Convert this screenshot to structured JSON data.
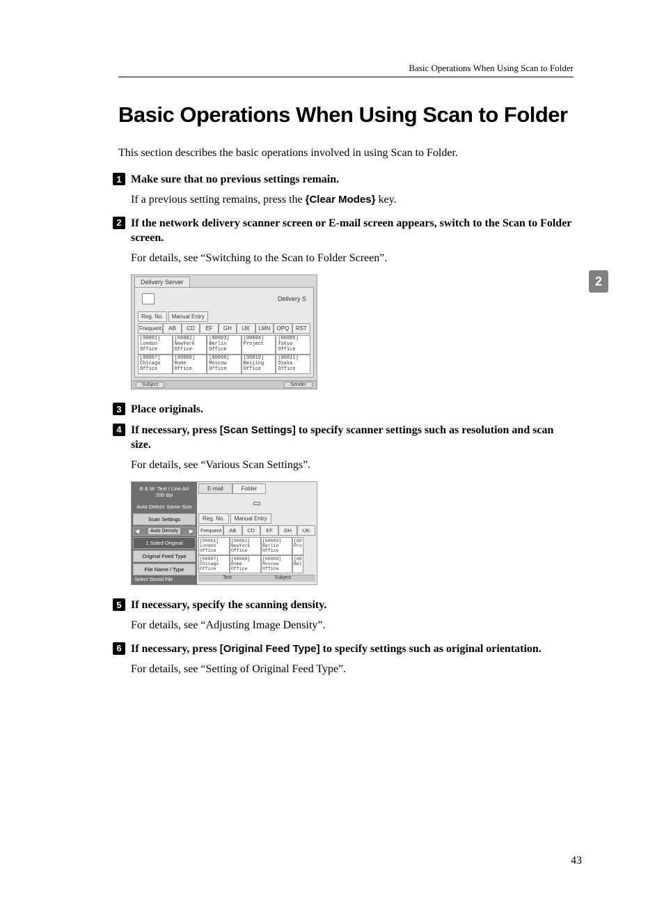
{
  "header": "Basic Operations When Using Scan to Folder",
  "title": "Basic Operations When Using Scan to Folder",
  "intro": "This section describes the basic operations involved in using Scan to Folder.",
  "side_tab": "2",
  "page_number": "43",
  "steps": {
    "s1": {
      "title": "Make sure that no previous settings remain.",
      "body_pre": "If a previous setting remains, press the ",
      "key": "{Clear Modes}",
      "body_post": " key."
    },
    "s2": {
      "title": "If the network delivery scanner screen or E-mail screen appears, switch to the Scan to Folder screen.",
      "body": "For details, see “Switching to the Scan to Folder Screen”."
    },
    "s3": {
      "title": "Place originals."
    },
    "s4": {
      "title_pre": "If necessary, press ",
      "key": "[Scan Settings]",
      "title_post": " to specify scanner settings such as resolution and scan size.",
      "body": "For details, see “Various Scan Settings”."
    },
    "s5": {
      "title": "If necessary, specify the scanning density.",
      "body": "For details, see “Adjusting Image Density”."
    },
    "s6": {
      "title_pre": "If necessary, press ",
      "key": "[Original Feed Type]",
      "title_post": " to specify settings such as original orientation.",
      "body": "For details, see “Setting of Original Feed Type”."
    }
  },
  "ss1": {
    "tab": "Delivery Server",
    "right_label": "Delivery S",
    "reg_no": "Reg. No.",
    "manual_entry": "Manual Entry",
    "frequent": "Frequent",
    "alpha": [
      "AB",
      "CD",
      "EF",
      "GH",
      "IJK",
      "LMN",
      "OPQ",
      "RST"
    ],
    "entries": [
      {
        "id": "[00001]",
        "name": "London Office"
      },
      {
        "id": "[00002]",
        "name": "NewYork Office"
      },
      {
        "id": "[00003]",
        "name": "Berlin Office"
      },
      {
        "id": "[00004]",
        "name": "Project"
      },
      {
        "id": "[00005]",
        "name": "Tokyo Office"
      },
      {
        "id": "[00007]",
        "name": "Chicago Office"
      },
      {
        "id": "[00008]",
        "name": "Rome Office"
      },
      {
        "id": "[00009]",
        "name": "Moscow Office"
      },
      {
        "id": "[00010]",
        "name": "Beijing Office"
      },
      {
        "id": "[00011]",
        "name": "Osaka Office"
      }
    ],
    "footer_left": "Subject",
    "footer_right": "Sender"
  },
  "ss2": {
    "info1": "B & W: Text / Line Art",
    "info2": "200 dpi",
    "info3": "Auto Detect: Same Size",
    "scan_settings": "Scan Settings",
    "auto_density": "Auto Density",
    "one_sided": "1 Sided Original",
    "feed_type": "Original Feed Type",
    "file_name": "File Name / Type",
    "left_foot": "Select Stored File",
    "tab_email": "E-mail",
    "tab_folder": "Folder",
    "reg_no": "Reg. No.",
    "manual_entry": "Manual Entry",
    "frequent": "Frequent",
    "alpha": [
      "AB",
      "CD",
      "EF",
      "GH",
      "IJK"
    ],
    "entries_r1": [
      {
        "id": "[00001]",
        "name": "London Office"
      },
      {
        "id": "[00002]",
        "name": "NewYork Office"
      },
      {
        "id": "[00003]",
        "name": "Berlin Office"
      },
      {
        "id": "[00",
        "name": "Pro"
      }
    ],
    "entries_r2": [
      {
        "id": "[00007]",
        "name": "Chicago Office"
      },
      {
        "id": "[00008]",
        "name": "Rome Office"
      },
      {
        "id": "[00009]",
        "name": "Moscow Office"
      },
      {
        "id": "[00",
        "name": "Beijing"
      }
    ],
    "footer_left": "Text",
    "footer_right": "Subject"
  }
}
